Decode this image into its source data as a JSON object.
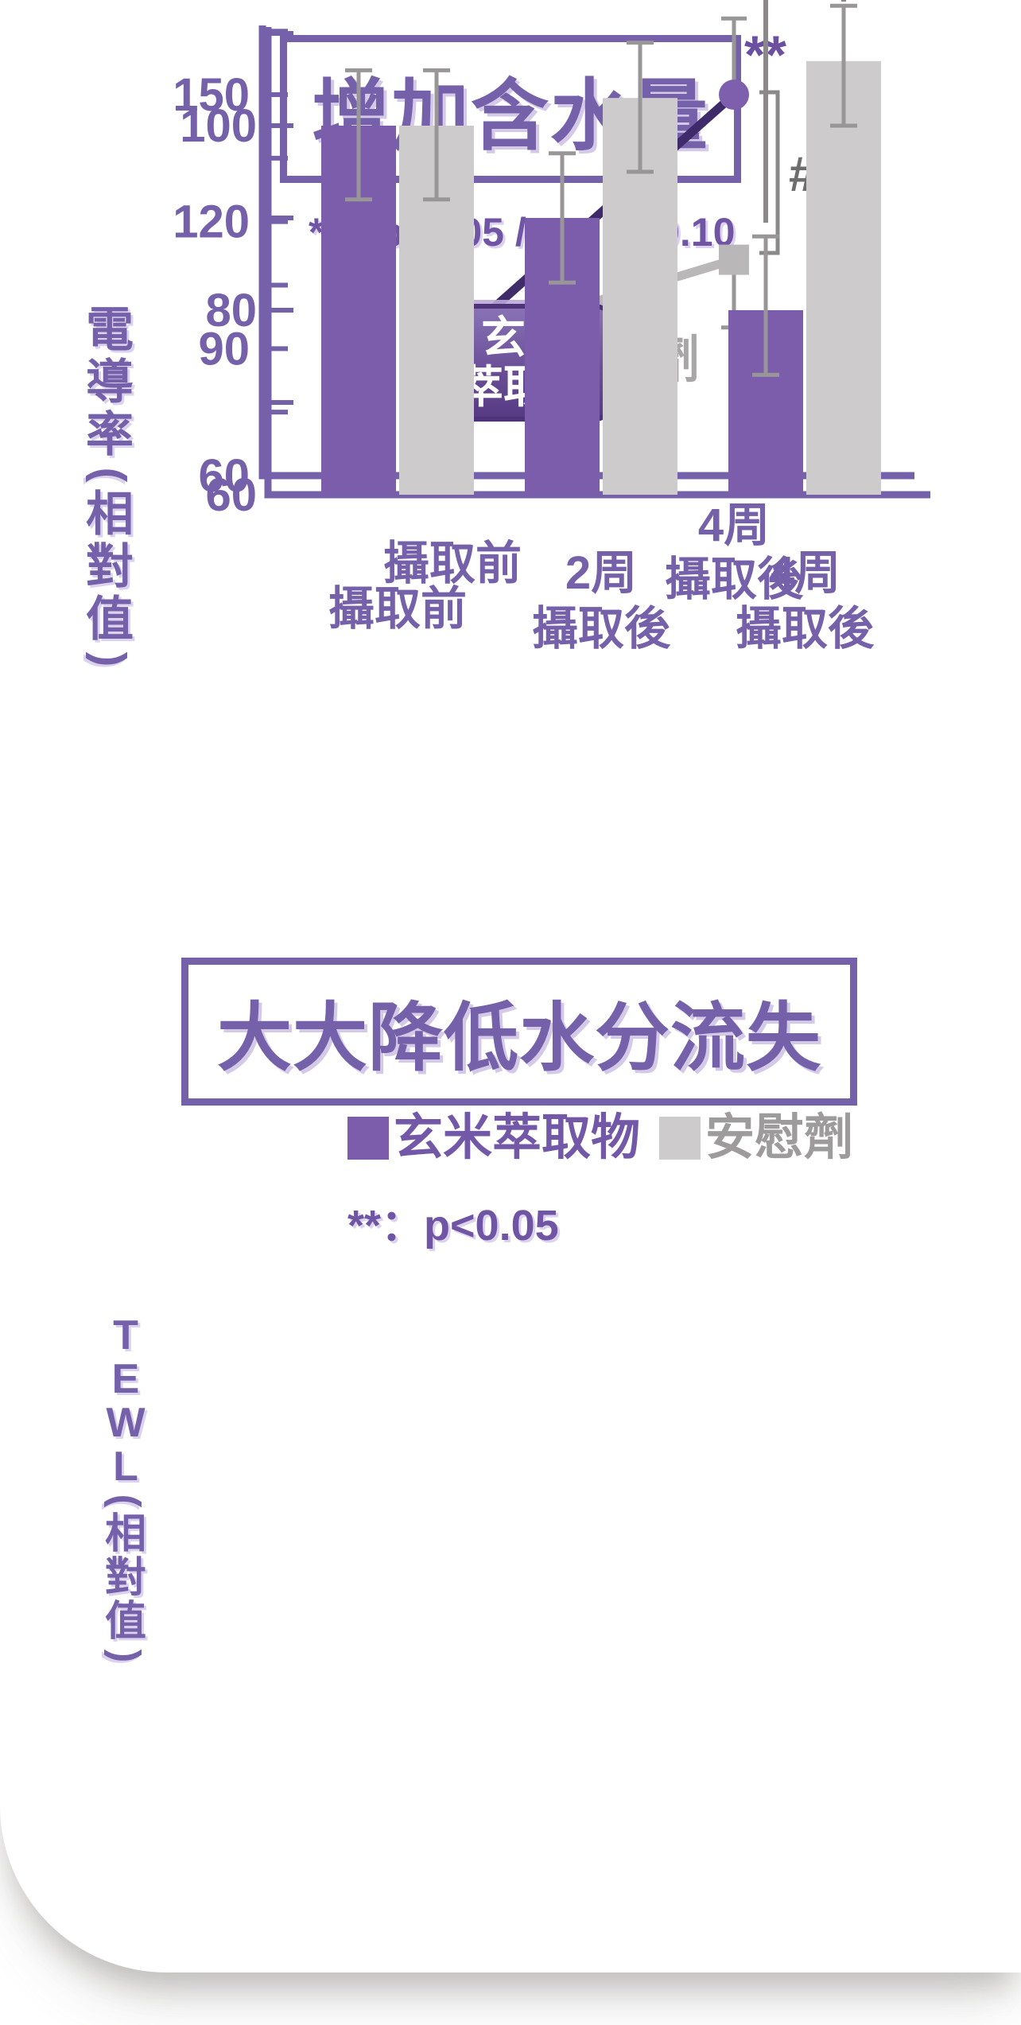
{
  "colors": {
    "purple_main": "#7560aa",
    "purple_dark_line": "#3f2a6a",
    "purple_marker": "#7d5fae",
    "purple_bar": "#7b5dab",
    "gray_bar": "#cdcbcc",
    "gray_line": "#b9b7b8",
    "gray_text": "#a8a6a7",
    "gray_error": "#989697",
    "gray_bracket": "#8a8889",
    "hash_gray": "#6f6e6f",
    "sig_purple": "#6b4fa1"
  },
  "chart_data": [
    {
      "type": "line",
      "title": "增加含水量",
      "annotation": "**：p<0.05 /  #：p<0.10",
      "ylabel": "電導率(相對值)",
      "categories": [
        "攝取前",
        "4周\n攝取後"
      ],
      "ylim": [
        60,
        168
      ],
      "ytick_labels": [
        60,
        90,
        120,
        150
      ],
      "ytick_minor_step": 15,
      "grid": false,
      "legend_position": "inline-badges",
      "series": [
        {
          "name": "玄米萃取物",
          "values": [
            91,
            150
          ],
          "errors": [
            [
              77,
              107
            ],
            [
              150,
              168
            ]
          ],
          "marker": "circle",
          "line_color": "#3f2a6a",
          "marker_color": "#7d5fae",
          "significance": "**"
        },
        {
          "name": "安慰劑",
          "values": [
            91,
            111
          ],
          "errors": [
            [
              77,
              107
            ],
            [
              95,
              111
            ]
          ],
          "marker": "square",
          "line_color": "#b9b7b8",
          "marker_color": "#b9b7b8"
        }
      ],
      "badge_lines": [
        "玄米",
        "萃取物"
      ],
      "inline_series_label": "安慰劑",
      "comparison_bracket": {
        "label": "#",
        "at_category": "4周攝取後"
      }
    },
    {
      "type": "bar",
      "title": "大大降低水分流失",
      "annotation": "**：p<0.05",
      "ylabel": "TEWL(相對值)",
      "categories": [
        "攝取前",
        "2周\n攝取後",
        "4周\n攝取後"
      ],
      "ylim": [
        60,
        113
      ],
      "ytick_labels": [
        60,
        80,
        100
      ],
      "ytick_minor_step": 10,
      "grid": false,
      "legend_position": "top",
      "legend": [
        {
          "label": "玄米萃取物",
          "color": "#7b5dab",
          "text_color": "#7358a8"
        },
        {
          "label": "安慰劑",
          "color": "#cdcbcc",
          "text_color": "#9d9b9c"
        }
      ],
      "series": [
        {
          "name": "玄米萃取物",
          "color": "#7b5dab",
          "values": [
            100,
            90,
            80
          ],
          "errors": [
            [
              92,
              106
            ],
            [
              83,
              97
            ],
            [
              73,
              88
            ]
          ]
        },
        {
          "name": "安慰劑",
          "color": "#cdcbcc",
          "values": [
            100,
            103,
            107
          ],
          "errors": [
            [
              92,
              106
            ],
            [
              95,
              109
            ],
            [
              100,
              113
            ]
          ]
        }
      ],
      "comparison_bracket": {
        "label": "**",
        "at_category": "4周攝取後"
      }
    }
  ]
}
